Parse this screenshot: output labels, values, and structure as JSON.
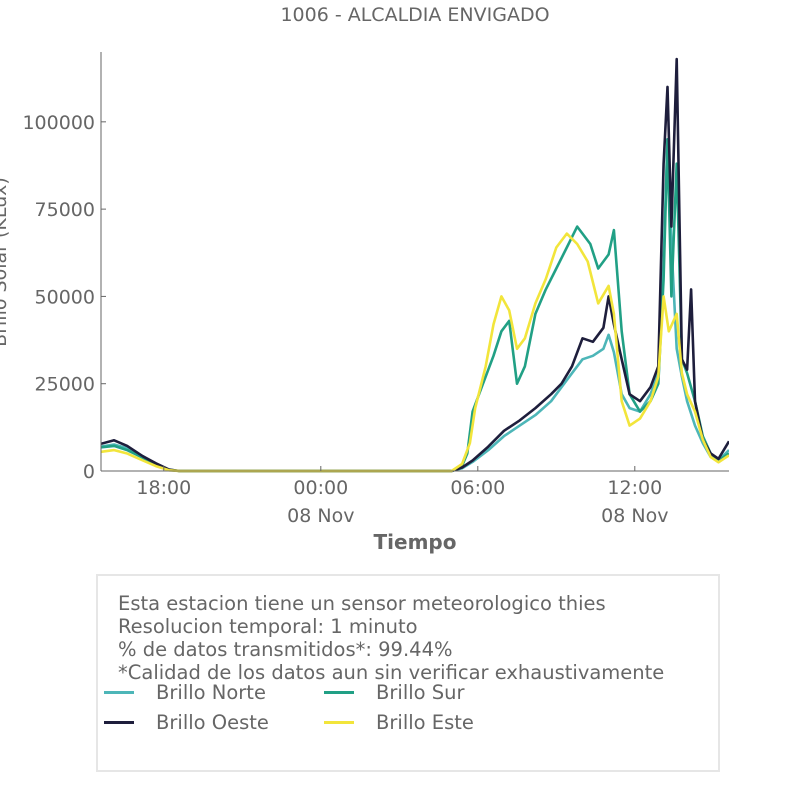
{
  "chart_data": {
    "type": "line",
    "title": "1006 - ALCALDIA ENVIGADO",
    "xlabel": "Tiempo",
    "ylabel": "Brillo Solar (KLux)",
    "x_tick_labels": [
      {
        "x": 1.0,
        "line1": "18:00",
        "line2": ""
      },
      {
        "x": 7.0,
        "line1": "00:00",
        "line2": "08 Nov"
      },
      {
        "x": 13.0,
        "line1": "06:00",
        "line2": ""
      },
      {
        "x": 19.0,
        "line1": "12:00",
        "line2": "08 Nov"
      }
    ],
    "x_unit": "hours since 17:00 on 07 Nov",
    "xlim": [
      -1.4,
      22.6
    ],
    "ylim": [
      0,
      120000
    ],
    "yticks": [
      0,
      25000,
      50000,
      75000,
      100000
    ],
    "grid": false,
    "series": [
      {
        "name": "Brillo Norte",
        "color": "#4db6b8",
        "points": [
          [
            -1.4,
            7000
          ],
          [
            -0.9,
            7600
          ],
          [
            -0.4,
            6500
          ],
          [
            0.2,
            4200
          ],
          [
            0.7,
            2000
          ],
          [
            1.2,
            400
          ],
          [
            1.6,
            0
          ],
          [
            12.0,
            0
          ],
          [
            12.4,
            800
          ],
          [
            12.8,
            2600
          ],
          [
            13.4,
            6000
          ],
          [
            14.0,
            10000
          ],
          [
            14.6,
            13000
          ],
          [
            15.2,
            16000
          ],
          [
            15.8,
            20000
          ],
          [
            16.2,
            24000
          ],
          [
            16.6,
            28000
          ],
          [
            17.0,
            32000
          ],
          [
            17.4,
            33000
          ],
          [
            17.8,
            35000
          ],
          [
            18.0,
            39000
          ],
          [
            18.2,
            34000
          ],
          [
            18.5,
            22000
          ],
          [
            18.8,
            18000
          ],
          [
            19.2,
            17000
          ],
          [
            19.6,
            22000
          ],
          [
            19.9,
            28000
          ],
          [
            20.1,
            60000
          ],
          [
            20.25,
            95000
          ],
          [
            20.4,
            65000
          ],
          [
            20.6,
            35000
          ],
          [
            20.8,
            27000
          ],
          [
            21.0,
            20000
          ],
          [
            21.3,
            13000
          ],
          [
            21.6,
            8000
          ],
          [
            21.9,
            4000
          ],
          [
            22.2,
            3000
          ],
          [
            22.6,
            6000
          ]
        ]
      },
      {
        "name": "Brillo Sur",
        "color": "#21a085",
        "points": [
          [
            -1.4,
            6800
          ],
          [
            -0.9,
            7200
          ],
          [
            -0.4,
            6000
          ],
          [
            0.2,
            3800
          ],
          [
            0.7,
            1800
          ],
          [
            1.2,
            300
          ],
          [
            1.6,
            0
          ],
          [
            12.0,
            0
          ],
          [
            12.4,
            1500
          ],
          [
            12.6,
            5000
          ],
          [
            12.8,
            17000
          ],
          [
            13.2,
            25000
          ],
          [
            13.6,
            33000
          ],
          [
            13.9,
            40000
          ],
          [
            14.2,
            43000
          ],
          [
            14.5,
            25000
          ],
          [
            14.8,
            30000
          ],
          [
            15.2,
            45000
          ],
          [
            15.6,
            52000
          ],
          [
            16.0,
            58000
          ],
          [
            16.4,
            64000
          ],
          [
            16.8,
            70000
          ],
          [
            17.0,
            68000
          ],
          [
            17.3,
            65000
          ],
          [
            17.6,
            58000
          ],
          [
            18.0,
            62000
          ],
          [
            18.2,
            69000
          ],
          [
            18.5,
            40000
          ],
          [
            18.8,
            22000
          ],
          [
            19.2,
            17000
          ],
          [
            19.6,
            20000
          ],
          [
            19.9,
            25000
          ],
          [
            20.1,
            55000
          ],
          [
            20.25,
            95000
          ],
          [
            20.4,
            50000
          ],
          [
            20.6,
            88000
          ],
          [
            20.8,
            32000
          ],
          [
            21.0,
            28000
          ],
          [
            21.3,
            20000
          ],
          [
            21.6,
            10000
          ],
          [
            21.9,
            5000
          ],
          [
            22.2,
            3000
          ],
          [
            22.6,
            5000
          ]
        ]
      },
      {
        "name": "Brillo Oeste",
        "color": "#1e1e3c",
        "points": [
          [
            -1.4,
            7800
          ],
          [
            -0.9,
            8800
          ],
          [
            -0.4,
            7200
          ],
          [
            0.2,
            4200
          ],
          [
            0.7,
            2200
          ],
          [
            1.2,
            400
          ],
          [
            1.6,
            0
          ],
          [
            12.0,
            0
          ],
          [
            12.4,
            1000
          ],
          [
            12.8,
            3000
          ],
          [
            13.4,
            7000
          ],
          [
            14.0,
            11500
          ],
          [
            14.6,
            14500
          ],
          [
            15.2,
            18000
          ],
          [
            15.8,
            22000
          ],
          [
            16.2,
            25000
          ],
          [
            16.6,
            30000
          ],
          [
            17.0,
            38000
          ],
          [
            17.4,
            37000
          ],
          [
            17.8,
            41000
          ],
          [
            18.0,
            50000
          ],
          [
            18.2,
            42000
          ],
          [
            18.5,
            32000
          ],
          [
            18.8,
            22000
          ],
          [
            19.2,
            20000
          ],
          [
            19.6,
            24000
          ],
          [
            19.9,
            30000
          ],
          [
            20.1,
            88000
          ],
          [
            20.25,
            110000
          ],
          [
            20.4,
            70000
          ],
          [
            20.6,
            118000
          ],
          [
            20.8,
            32000
          ],
          [
            21.0,
            29000
          ],
          [
            21.15,
            52000
          ],
          [
            21.3,
            20000
          ],
          [
            21.6,
            9000
          ],
          [
            21.9,
            5000
          ],
          [
            22.2,
            3500
          ],
          [
            22.6,
            8500
          ]
        ]
      },
      {
        "name": "Brillo Este",
        "color": "#f2e53b",
        "points": [
          [
            -1.4,
            5500
          ],
          [
            -0.9,
            6000
          ],
          [
            -0.4,
            5000
          ],
          [
            0.2,
            3000
          ],
          [
            0.7,
            1400
          ],
          [
            1.2,
            200
          ],
          [
            1.6,
            0
          ],
          [
            12.0,
            0
          ],
          [
            12.4,
            2000
          ],
          [
            12.7,
            8000
          ],
          [
            12.9,
            18000
          ],
          [
            13.3,
            30000
          ],
          [
            13.6,
            42000
          ],
          [
            13.9,
            50000
          ],
          [
            14.2,
            46000
          ],
          [
            14.5,
            35000
          ],
          [
            14.8,
            38000
          ],
          [
            15.2,
            48000
          ],
          [
            15.6,
            55000
          ],
          [
            16.0,
            64000
          ],
          [
            16.4,
            68000
          ],
          [
            16.8,
            65000
          ],
          [
            17.2,
            60000
          ],
          [
            17.6,
            48000
          ],
          [
            18.0,
            53000
          ],
          [
            18.2,
            45000
          ],
          [
            18.5,
            20000
          ],
          [
            18.8,
            13000
          ],
          [
            19.2,
            15000
          ],
          [
            19.6,
            20000
          ],
          [
            19.9,
            27000
          ],
          [
            20.1,
            50000
          ],
          [
            20.3,
            40000
          ],
          [
            20.6,
            45000
          ],
          [
            20.8,
            28000
          ],
          [
            21.0,
            22000
          ],
          [
            21.3,
            17000
          ],
          [
            21.6,
            9000
          ],
          [
            21.9,
            4000
          ],
          [
            22.2,
            2500
          ],
          [
            22.6,
            4500
          ]
        ]
      }
    ]
  },
  "info": {
    "line1": "Esta estacion tiene un sensor meteorologico thies",
    "line2": "Resolucion temporal: 1 minuto",
    "line3": "% de datos transmitidos*: 99.44%",
    "line4": "*Calidad de los datos aun sin verificar exhaustivamente"
  },
  "legend": [
    {
      "label": "Brillo Norte",
      "color": "#4db6b8"
    },
    {
      "label": "Brillo Sur",
      "color": "#21a085"
    },
    {
      "label": "Brillo Oeste",
      "color": "#1e1e3c"
    },
    {
      "label": "Brillo Este",
      "color": "#f2e53b"
    }
  ]
}
